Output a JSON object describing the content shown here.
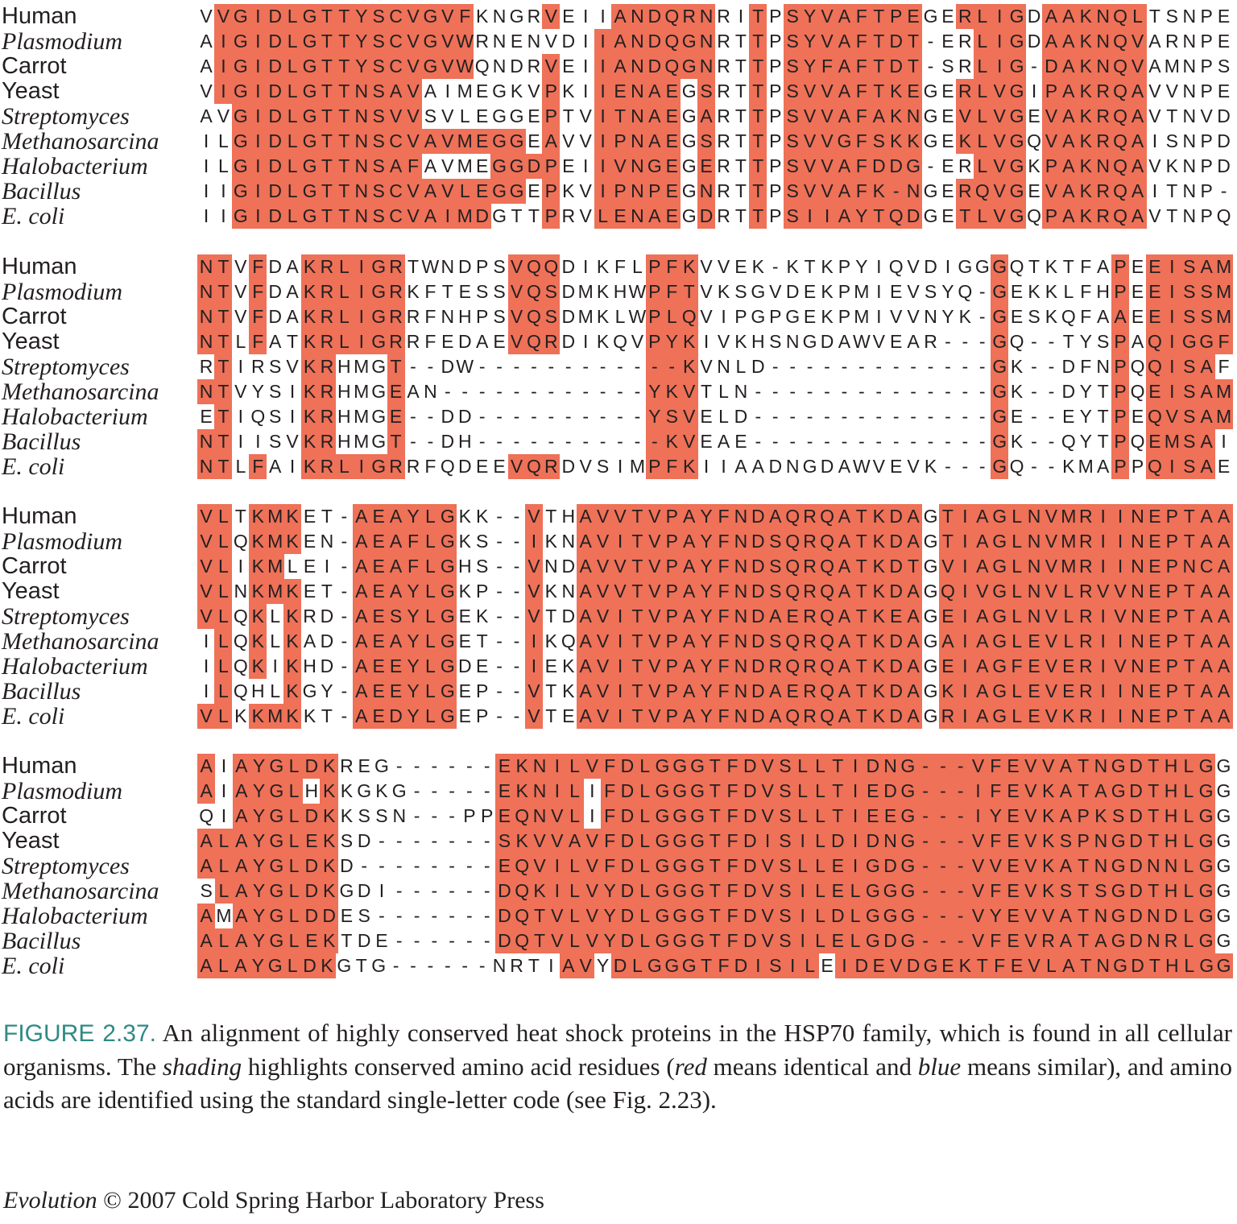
{
  "figure": {
    "species": [
      "Human",
      "Plasmodium",
      "Carrot",
      "Yeast",
      "Streptomyces",
      "Methanosarcina",
      "Halobacterium",
      "Bacillus",
      "E. coli"
    ],
    "italic_species": [
      "Plasmodium",
      "Streptomyces",
      "Methanosarcina",
      "Halobacterium",
      "Bacillus",
      "E. coli"
    ],
    "shading_colors": {
      "identical": "#ee7158",
      "similar": "#d9eef0",
      "caption_label": "#2f8a85"
    },
    "blocks": [
      {
        "sequences": [
          "VVGIDLGTTYSCVGVFKNGRVEIIANDQRNRITPSYVAFTPEGERLIGDAAKNQLTSNPE",
          "AIGIDLGTTYSCVGVWRNENVDIIANDQGNRTTPSYVAFTDT-ERLIGDAAKNQVARNPE",
          "AIGIDLGTTYSCVGVWQNDRVEIIANDQGNRTTPSYFAFTDT-SRLIG-DAKNQVAMNPS",
          "VIGIDLGTTNSAVAIMEGKVPKIIENAEGSRTTPSVVAFTKEGERLVGIPAKRQAVVNPE",
          "AVGIDLGTTNSVVSVLEGGEPTVITNAEGARTTPSVVAFAKNGEVLVGEVAKRQAVTNVD",
          "ILGIDLGTTNSCVAVMEGGEAVVIPNAEGSRTTPSVVGFSKKGEKLVGQVAKRQAISNPD",
          "ILGIDLGTTNSAFAVMEGGDPEIIVNGEGERTTPSVVAFDDG-ERLVGKPAKNQAVKNPD",
          "IIGIDLGTTNSCVAVLEGGEPKVIPNPEGNRTTPSVVAFK-NGERQVGEVAKRQAITNP-",
          "IIGIDLGTTNSCVAIMDGTTPRVLENAEGDRTTPSIIAYTQDGETLVGQPAKRQAVTNPQ"
        ],
        "shading": [
          "BRRRRRRRRRRRRRRRBBBBRBBBRRRRRRBBRBRRRRRRRRBBRRRRBRRRRRRBBBBB",
          "BRRRRRRRRRRRRRRRBBBBBBBRRRRRRRBBRBRRRRRRRRBBBRRRBRRRRRRBBBBB",
          "BRRRRRRRRRRRRRRRBBBBRBBRRRRRRRBBRBRRRRRRRRBBBRRRBRRRRRRBBBBB",
          "BRRRRRRRRRRRRBBBBBBBRBBRRRRRBRBBRBRRRRRRRRBBRRRRBRRRRRRBBBBB",
          "BBRRRRRRRRRRRBBBBBBBRBBRRRRRBRBBRBRRRRRRRRBBRRRRBRRRRRRBBBBB",
          "BBRRRRRRRRRRRRRRRRRBRBBRRRRRBRBBRBRRRRRRRRBBRRRRBRRRRRRBBBBB",
          "BBRRRRRRRRRRRBBBBRRRRBBRRRRRBRBBRBRRRRRRRRBBBRRRBRRRRRRBBBBB",
          "BBRRRRRRRRRRRRRRRRRBRBBRRRRRBRBBRBRRRRRRRRBBRRRRBRRRRRRBBBBB",
          "BBRRRRRRRRRRRRRRRBBBRBBRRRRRBRBBRBRRRRRRRRBBRRRRBRRRRRRBBBBB"
        ]
      },
      {
        "sequences": [
          "NTVFDAKRLIGRTWNDPSVQQDIKFLPFKVVEK-KTKPYIQVDIGGGQTKTFAPEEISAM",
          "NTVFDAKRLIGRKFTESSVQSDMKHWPFTVKSGVDEKPMIEVSYQ-GEKKLFHPEEISSM",
          "NTVFDAKRLIGRRFNHPSVQSDMKLWPLQVIPGPGEKPMIVVNYK-GESKQFAAEEISSM",
          "NTLFATKRLIGRRFEDAEVQRDIKQVPYKIVKHSNGDAWVEAR---GQ--TYSPAQIGGF",
          "RTIRSVKRHMGT--DW------------KVNLD-------------GK--DFNPQQISAF",
          "NTVYSIKRHMGEAN------------YKVTLN--------------GK--DYTPQEISAM",
          "ETIQSIKRHMGE--DD----------YSVELD--------------GE--EYTPEQVSAM",
          "NTIISVKRHMGT--DH-----------KVEAE--------------GK--QYTPQEMSAI",
          "NTLFAIKRLIGRRFQDEEVQRDVSIMPFKIIAADNGDAWVEVK---GQ--KMAPPQISAE"
        ],
        "shading": [
          "RRBRBBRRRRRRBBBBBBRRRBBBBBRRRBBBBBBBBBBBBBBBBBRBBBBBBRBRRRRR",
          "RRBRBBRRRRRRBBBBBBRRRBBBBBRRRBBBBBBBBBBBBBBBBBRBBBBBBRBRRRRR",
          "RRBRBBRRRRRRBBBBBBRRRBBBBBRRRBBBBBBBBBBBBBBBBBRBBBBBBRBRRRRR",
          "RRBRBBRRRRRRBBBBBBRRRBBBBBRRRBBBBBBBBBBBBBBBBBRBBBBBBRBRRRRR",
          "BRBBBBRRBBBRBBBBBBBBBBBBBBRRRBBBBBBBBBBBBBBBBBRBBBBBBRBRRRRB",
          "RRBBBBRRBBBRBBBBBBBBBBBBBBRRRBBBBBBBBBBBBBBBBBRBBBBBBRBRRRRR",
          "BRBBBBRRBBBRBBBBBBBBBBBBBBRRRBBBBBBBBBBBBBBBBBRBBBBBBRBRRRRR",
          "RRBBBBRRBBBRBBBBBBBBBBBBBBRRRBBBBBBBBBBBBBBBBBRBBBBBBRBRRRRB",
          "RRBRBBRRRRRRBBBBBBRRRBBBBBRRRBBBBBBBBBBBBBBBBBRBBBBBBRBRRRRB"
        ]
      },
      {
        "sequences": [
          "VLTKMKET-AEAYLGKK--VTHAVVTVPAYFNDAQRQATKDAGTIAGLNVMRIINEPTAA",
          "VLQKMKEN-AEAFLGKS--IKNAVITVPAYFNDSQRQATKDAGTIAGLNVMRIINEPTAA",
          "VLIKMLEI-AEAFLGHS--VNDAVVTVPAYFNDSQRQATKDTGVIAGLNVMRIINEPNCA",
          "VLNKMKET-AEAYLGKP--VKNAVVTVPAYFNDSQRQATKDAGQIVGLNVLRVVNEPTAA",
          "VLQKLKRD-AESYLGEK--VTDAVITVPAYFNDAERQATKEAGEIAGLNVLRIVNEPTAA",
          "ILQKLKAD-AEAYLGET--IKQAVITVPAYFNDSQRQATKDAGAIAGLEVLRIINEPTAA",
          "ILQKIKHD-AEEYLGDE--IEKAVITVPAYFNDRQRQATKDAGEIAGFEVERIVNEPTAA",
          "ILQHLKGY-AEEYLGEP--VTKAVITVPAYFNDAERQATKDAGKIAGLEVERIINEPTAA",
          "VLKKMKKT-AEDYLGEP--VTEAVITVPAYFNDAQRQATKDAGRIAGLEVKRIINEPTAA"
        ],
        "shading": [
          "RRBRRRBBBRRRRRRBBBBRBBRRRRRRRRRRRRRRRRRRRRBRRRRRRRRRRRRRRRRR",
          "RRBRRRBBBRRRRRRBBBBRBBRRRRRRRRRRRRRRRRRRRRBRRRRRRRRRRRRRRRRR",
          "RRBRRBBBBRRRRRRBBBBRBBRRRRRRRRRRRRRRRRRRRRBRRRRRRRRRRRRRRRRR",
          "RRBRRRBBBRRRRRRBBBBRBBRRRRRRRRRRRRRRRRRRRRBRRRRRRRRRRRRRRRRR",
          "RRBRBRBBBRRRRRRBBBBRBBRRRRRRRRRRRRRRRRRRRRBRRRRRRRRRRRRRRRRR",
          "BRBRBRBBBRRRRRRBBBBRBBRRRRRRRRRRRRRRRRRRRRBRRRRRRRRRRRRRRRRR",
          "BRBRBRBBBRRRRRRBBBBRBBRRRRRRRRRRRRRRRRRRRRBRRRRRRRRRRRRRRRRR",
          "BRBBBRBBBRRRRRRBBBBRBBRRRRRRRRRRRRRRRRRRRRBRRRRRRRRRRRRRRRRR",
          "RRBRRRBBBRRRRRRBBBBRBBRRRRRRRRRRRRRRRRRRRRBRRRRRRRRRRRRRRRRR"
        ]
      },
      {
        "sequences": [
          "AIAYGLDKREG------EKNILVFDLGGGTFDVSLLTIDNG---VFEVVATNGDTHLGG",
          "AIAYGLHKKGKG-----EKNILIFDLGGGTFDVSLLTIEDG---IFEVKATAGDTHLGG",
          "QIAYGLDKKSSN---PPEQNVLIFDLGGGTFDVSLLTIEEG---IYEVKAPKSDTHLGG",
          "ALAYGLEKSD-------SKVVAVFDLGGGTFDISILDIDNG---VFEVKSPNGDTHLGG",
          "ALAYGLDKD--------EQVILVFDLGGGTFDVSLLEIGDG---VVEVKATNGDNNLGG",
          "SLAYGLDKGDI------DQKILVYDLGGGTFDVSILELGGG---VFEVKSTSGDTHLGG",
          "AMAYGLDDES-------DQTVLVYDLGGGTFDVSILDLGGG---VYEVVATNGDNDLGG",
          "ALAYGLEKTDE------DQTVLVYDLGGGTFDVSILELGDG---VFEVRATAGDNRLGG",
          "ALAYGLDKGTG------NRTIAVYDLGGGTFDISILEIDEVDGEKTFEVLATNGDTHLGG"
        ],
        "shading": [
          "RBRRRRRRBBBBBBBBBRRRRRRRRRRRRRRRRRRRRRRRRRRRRRRRRRRRRRRRRR",
          "RBRRRRBRBBBBBBBBBRRRRRBRRRRRRRRRRRRRRRRRRRRRRRRRRRRRRRRRRR",
          "BBRRRRRRBBBBBBBBBRRRRRBRRRRRRRRRRRRRRRRRRRRRRRRRRRRRRRRRRR",
          "RRRRRRRRBBBBBBBBBRRRRRRRRRRRRRRRRRRRRRRRRRRRRRRRRRRRRRRRRR",
          "RRRRRRRRBBBBBBBBBRRRRRRRRRRRRRRRRRRRRRRRRRRRRRRRRRRRRRRRRR",
          "BRRRRRRRBBBBBBBBBRRRRRRRRRRRRRRRRRRRRRRRRRRRRRRRRRRRRRRRRR",
          "RBRRRRRRBBBBBBBBBRRRRRRRRRRRRRRRRRRRRRRRRRRRRRRRRRRRRRRRRR",
          "RRRRRRRRBBBBBBBBBRRRRRRRRRRRRRRRRRRRRRRRRRRRRRRRRRRRRRRRRR",
          "RRRRRRRRBBBBBBBBBBBBBRRBRRRRRRRRRRRRBRRRRRRRRRRRRRRRRRRRRRRR"
        ]
      }
    ]
  },
  "caption": {
    "label": "FIGURE 2.37.",
    "text_1": " An alignment of highly conserved heat shock proteins in the HSP70 family, which is found in all cellular organisms. The ",
    "italic_1": "shading",
    "text_2": " highlights conserved amino acid residues (",
    "italic_2": "red",
    "text_3": " means identical and ",
    "italic_3": "blue",
    "text_4": " means similar), and amino acids are identified using the standard single-letter code (see Fig. 2.23)."
  },
  "credit": {
    "italic": "Evolution",
    "text": " © 2007 Cold Spring Harbor Laboratory Press"
  }
}
